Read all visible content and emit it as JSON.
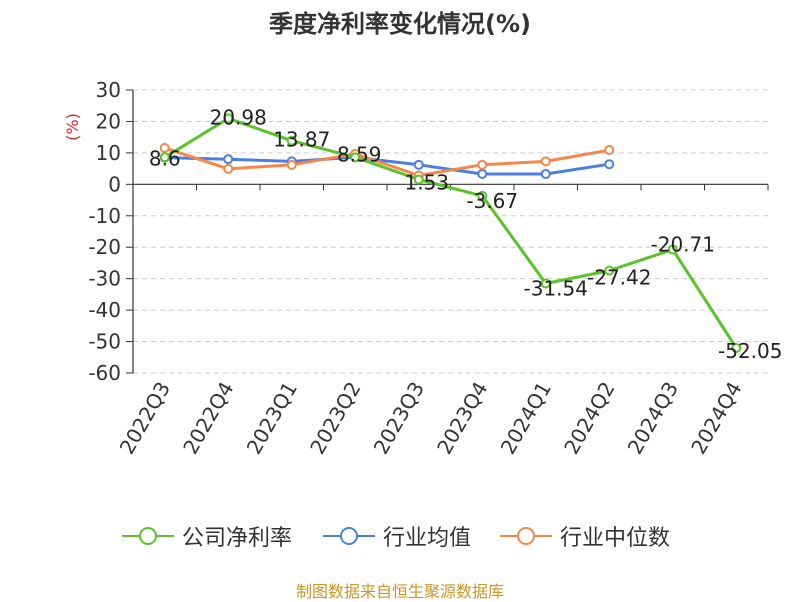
{
  "colors": {
    "net_margin": "#5cc22a",
    "industry_avg": "#4a7fe0",
    "industry_median": "#f5874a",
    "ylabel": "#d62728",
    "source": "#c8962a",
    "axis": "#333333",
    "grid": "#cccccc"
  },
  "chart_data": {
    "type": "line",
    "title": "季度净利率变化情况(%)",
    "ylabel": "(%)",
    "xlabel": "",
    "ylim": [
      -60,
      30
    ],
    "yticks": [
      30,
      20,
      10,
      0,
      -10,
      -20,
      -30,
      -40,
      -50,
      -60
    ],
    "grid": "horizontal-dashed",
    "legend_position": "bottom",
    "categories": [
      "2022Q3",
      "2022Q4",
      "2023Q1",
      "2023Q2",
      "2023Q3",
      "2023Q4",
      "2024Q1",
      "2024Q2",
      "2024Q3",
      "2024Q4"
    ],
    "series": [
      {
        "name": "公司净利率",
        "color": "#5cc22a",
        "values": [
          8.6,
          20.98,
          13.87,
          8.59,
          1.53,
          -3.67,
          -31.54,
          -27.42,
          -20.71,
          -52.05
        ],
        "labels": [
          "8.6",
          "20.98",
          "13.87",
          "8.59",
          "1.53",
          "-3.67",
          "-31.54",
          "-27.42",
          "-20.71",
          "-52.05"
        ]
      },
      {
        "name": "行业均值",
        "color": "#4a7fe0",
        "values": [
          8.5,
          8.0,
          7.3,
          8.6,
          6.2,
          3.3,
          3.3,
          6.4,
          null,
          null
        ]
      },
      {
        "name": "行业中位数",
        "color": "#f5874a",
        "values": [
          11.6,
          4.9,
          6.2,
          9.7,
          2.8,
          6.2,
          7.3,
          10.9,
          null,
          null
        ]
      }
    ]
  },
  "footer": {
    "source": "制图数据来自恒生聚源数据库"
  }
}
